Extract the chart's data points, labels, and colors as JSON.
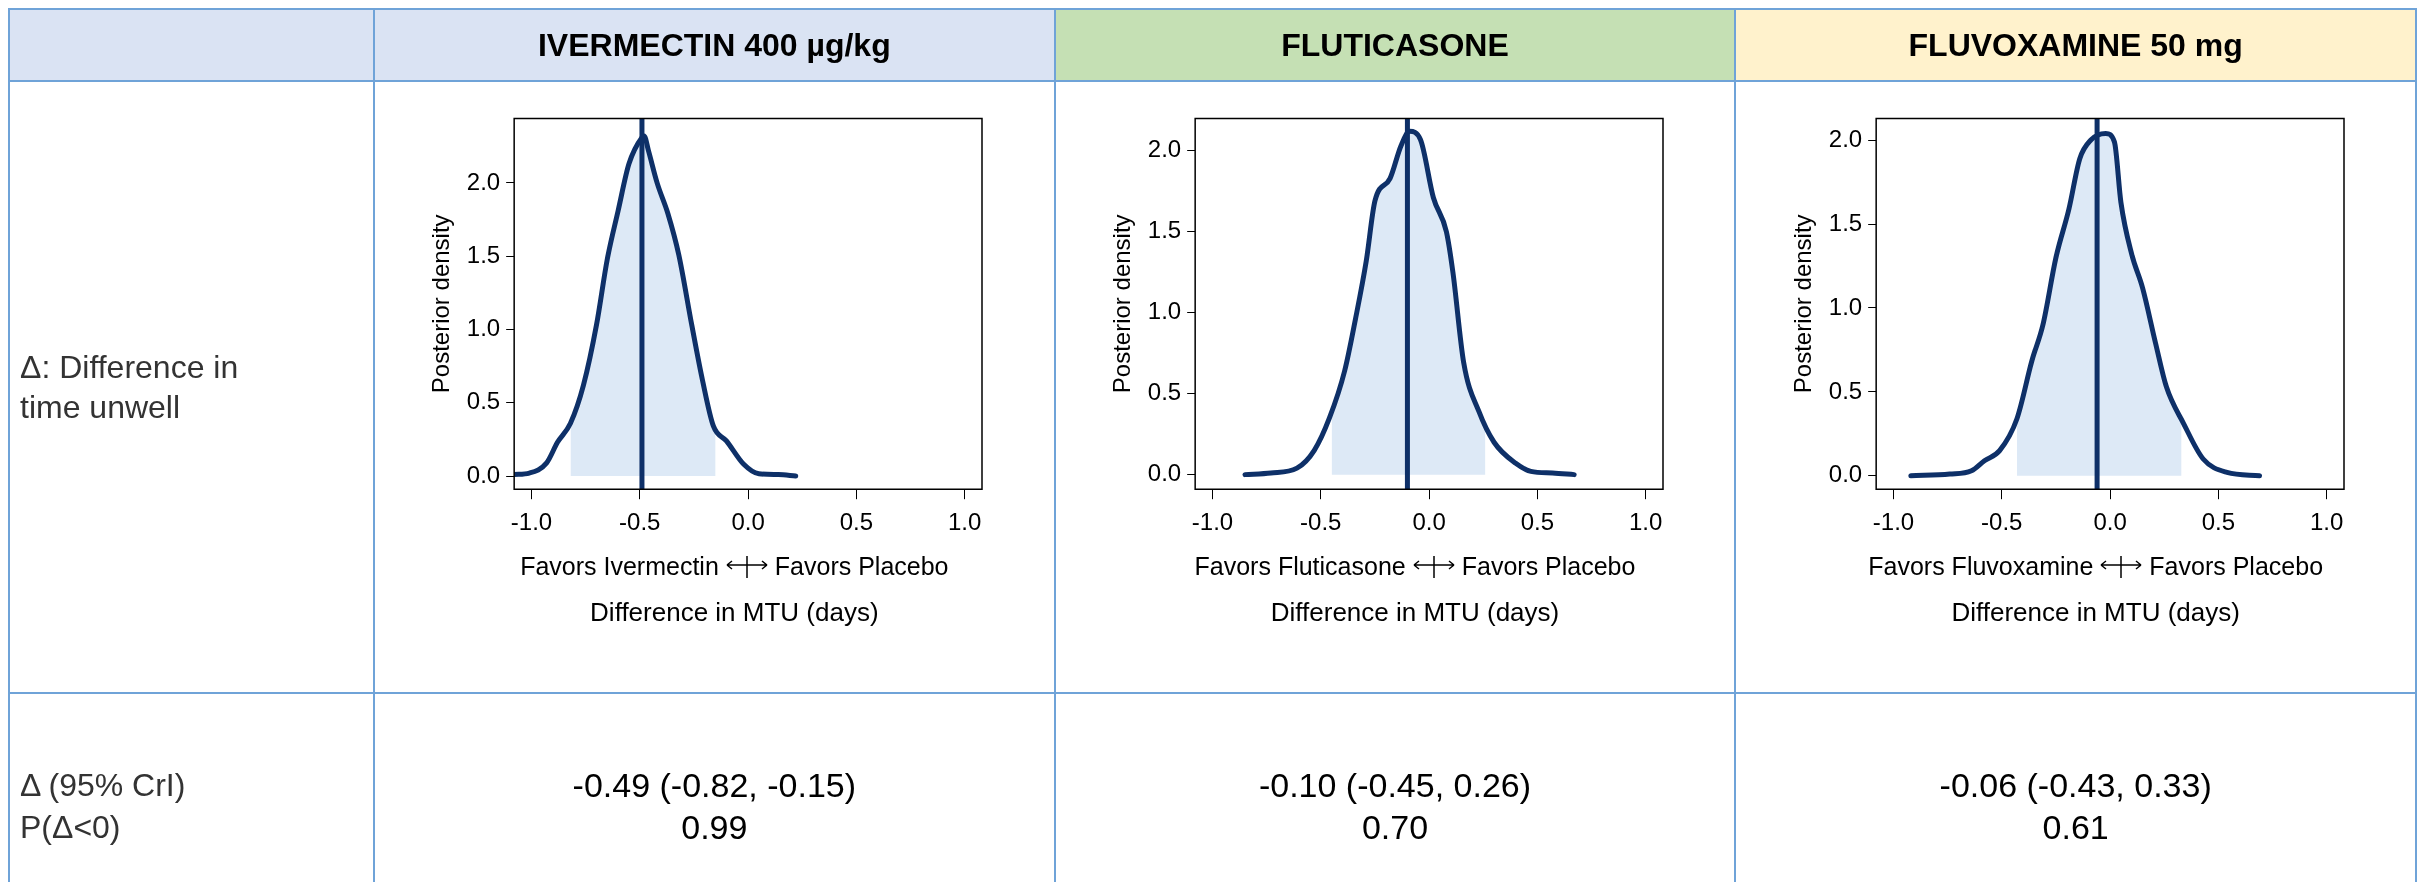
{
  "chart_data": [
    {
      "type": "other",
      "annotations": [
        "Δ: Difference in time unwell",
        "Δ (95% CrI)",
        "P(Δ<0)"
      ]
    },
    {
      "type": "line",
      "title": "IVERMECTIN 400 µg/kg",
      "xlabel": "Difference in MTU (days)",
      "ylabel": "Posterior density",
      "xlim": [
        -1.08,
        1.08
      ],
      "ylim": [
        -0.09,
        2.44
      ],
      "xticks": [
        {
          "value": -1,
          "label": "-1.0"
        },
        {
          "value": -0.5,
          "label": "-0.5"
        },
        {
          "value": 0,
          "label": "0.0"
        },
        {
          "value": 0.5,
          "label": "0.5"
        },
        {
          "value": 1,
          "label": "1.0"
        }
      ],
      "yticks": [
        {
          "value": 0,
          "label": "0.0"
        },
        {
          "value": 0.5,
          "label": "0.5"
        },
        {
          "value": 1,
          "label": "1.0"
        },
        {
          "value": 1.5,
          "label": "1.5"
        },
        {
          "value": 2,
          "label": "2.0"
        }
      ],
      "series": [
        {
          "type": "area",
          "color": "#dde9f6",
          "x": [
            -0.82,
            -0.76,
            -0.7,
            -0.65,
            -0.6,
            -0.55,
            -0.49,
            -0.48,
            -0.46,
            -0.42,
            -0.37,
            -0.32,
            -0.26,
            -0.21,
            -0.16,
            -0.15
          ],
          "values": [
            0.36,
            0.62,
            1.03,
            1.48,
            1.81,
            2.13,
            2.31,
            2.32,
            2.22,
            2.0,
            1.79,
            1.51,
            1.03,
            0.65,
            0.34,
            0.32
          ]
        },
        {
          "type": "line",
          "color": "#0e3068",
          "x": [
            -1.08,
            -1.01,
            -0.93,
            -0.88,
            -0.82,
            -0.76,
            -0.7,
            -0.65,
            -0.6,
            -0.55,
            -0.49,
            -0.48,
            -0.46,
            -0.42,
            -0.37,
            -0.32,
            -0.26,
            -0.21,
            -0.16,
            -0.1,
            -0.02,
            0.05,
            0.14,
            0.22
          ],
          "values": [
            0.01,
            0.02,
            0.09,
            0.23,
            0.36,
            0.62,
            1.03,
            1.48,
            1.81,
            2.13,
            2.31,
            2.32,
            2.22,
            2.0,
            1.79,
            1.51,
            1.03,
            0.65,
            0.34,
            0.24,
            0.08,
            0.015,
            0.01,
            0.0
          ]
        }
      ],
      "ref_lines": [
        {
          "axis": "x",
          "value": -0.49,
          "color": "#0e3068"
        }
      ],
      "annotations": [
        "Favors Ivermectin",
        "Favors Placebo",
        "-0.49 (-0.82, -0.15)",
        "0.99"
      ]
    },
    {
      "type": "line",
      "title": "FLUTICASONE",
      "xlabel": "Difference in MTU (days)",
      "ylabel": "Posterior density",
      "xlim": [
        -1.08,
        1.08
      ],
      "ylim": [
        -0.09,
        2.2
      ],
      "xticks": [
        {
          "value": -1,
          "label": "-1.0"
        },
        {
          "value": -0.5,
          "label": "-0.5"
        },
        {
          "value": 0,
          "label": "0.0"
        },
        {
          "value": 0.5,
          "label": "0.5"
        },
        {
          "value": 1,
          "label": "1.0"
        }
      ],
      "yticks": [
        {
          "value": 0,
          "label": "0.0"
        },
        {
          "value": 0.5,
          "label": "0.5"
        },
        {
          "value": 1,
          "label": "1.0"
        },
        {
          "value": 1.5,
          "label": "1.5"
        },
        {
          "value": 2,
          "label": "2.0"
        }
      ],
      "series": [
        {
          "type": "area",
          "color": "#dde9f6",
          "x": [
            -0.45,
            -0.39,
            -0.34,
            -0.29,
            -0.25,
            -0.18,
            -0.13,
            -0.09,
            -0.04,
            0.02,
            0.08,
            0.11,
            0.16,
            0.23,
            0.26
          ],
          "values": [
            0.37,
            0.64,
            0.96,
            1.32,
            1.69,
            1.83,
            2.03,
            2.12,
            2.07,
            1.71,
            1.5,
            1.25,
            0.69,
            0.39,
            0.3
          ]
        },
        {
          "type": "line",
          "color": "#0e3068",
          "x": [
            -0.85,
            -0.73,
            -0.61,
            -0.53,
            -0.46,
            -0.39,
            -0.34,
            -0.29,
            -0.25,
            -0.18,
            -0.13,
            -0.09,
            -0.04,
            0.02,
            0.08,
            0.11,
            0.16,
            0.23,
            0.3,
            0.4,
            0.47,
            0.57,
            0.67
          ],
          "values": [
            0.0,
            0.01,
            0.04,
            0.15,
            0.35,
            0.64,
            0.96,
            1.32,
            1.69,
            1.83,
            2.03,
            2.12,
            2.07,
            1.71,
            1.5,
            1.25,
            0.69,
            0.39,
            0.2,
            0.07,
            0.02,
            0.01,
            0.0
          ]
        }
      ],
      "ref_lines": [
        {
          "axis": "x",
          "value": -0.1,
          "color": "#0e3068"
        }
      ],
      "annotations": [
        "Favors Fluticasone",
        "Favors Placebo",
        "-0.10 (-0.45, 0.26)",
        "0.70"
      ]
    },
    {
      "type": "line",
      "title": "FLUVOXAMINE 50 mg",
      "xlabel": "Difference in MTU (days)",
      "ylabel": "Posterior density",
      "xlim": [
        -1.08,
        1.08
      ],
      "ylim": [
        -0.08,
        2.13
      ],
      "xticks": [
        {
          "value": -1,
          "label": "-1.0"
        },
        {
          "value": -0.5,
          "label": "-0.5"
        },
        {
          "value": 0,
          "label": "0.0"
        },
        {
          "value": 0.5,
          "label": "0.5"
        },
        {
          "value": 1,
          "label": "1.0"
        }
      ],
      "yticks": [
        {
          "value": 0,
          "label": "0.0"
        },
        {
          "value": 0.5,
          "label": "0.5"
        },
        {
          "value": 1,
          "label": "1.0"
        },
        {
          "value": 1.5,
          "label": "1.5"
        },
        {
          "value": 2,
          "label": "2.0"
        }
      ],
      "series": [
        {
          "type": "area",
          "color": "#dde9f6",
          "x": [
            -0.43,
            -0.36,
            -0.31,
            -0.25,
            -0.19,
            -0.14,
            -0.09,
            -0.02,
            0.02,
            0.05,
            0.1,
            0.15,
            0.21,
            0.26,
            0.33
          ],
          "values": [
            0.34,
            0.69,
            0.9,
            1.3,
            1.59,
            1.89,
            2.0,
            2.04,
            1.99,
            1.63,
            1.32,
            1.12,
            0.79,
            0.53,
            0.33
          ]
        },
        {
          "type": "line",
          "color": "#0e3068",
          "x": [
            -0.92,
            -0.74,
            -0.64,
            -0.58,
            -0.51,
            -0.43,
            -0.36,
            -0.31,
            -0.25,
            -0.19,
            -0.14,
            -0.09,
            -0.02,
            0.02,
            0.05,
            0.1,
            0.15,
            0.21,
            0.26,
            0.34,
            0.43,
            0.54,
            0.69
          ],
          "values": [
            0.0,
            0.01,
            0.03,
            0.09,
            0.15,
            0.34,
            0.69,
            0.9,
            1.3,
            1.59,
            1.89,
            2.0,
            2.04,
            1.99,
            1.63,
            1.32,
            1.12,
            0.79,
            0.53,
            0.31,
            0.1,
            0.02,
            0.0
          ]
        }
      ],
      "ref_lines": [
        {
          "axis": "x",
          "value": -0.06,
          "color": "#0e3068"
        }
      ],
      "annotations": [
        "Favors Fluvoxamine",
        "Favors Placebo",
        "-0.06 (-0.43, 0.33)",
        "0.61"
      ]
    }
  ]
}
